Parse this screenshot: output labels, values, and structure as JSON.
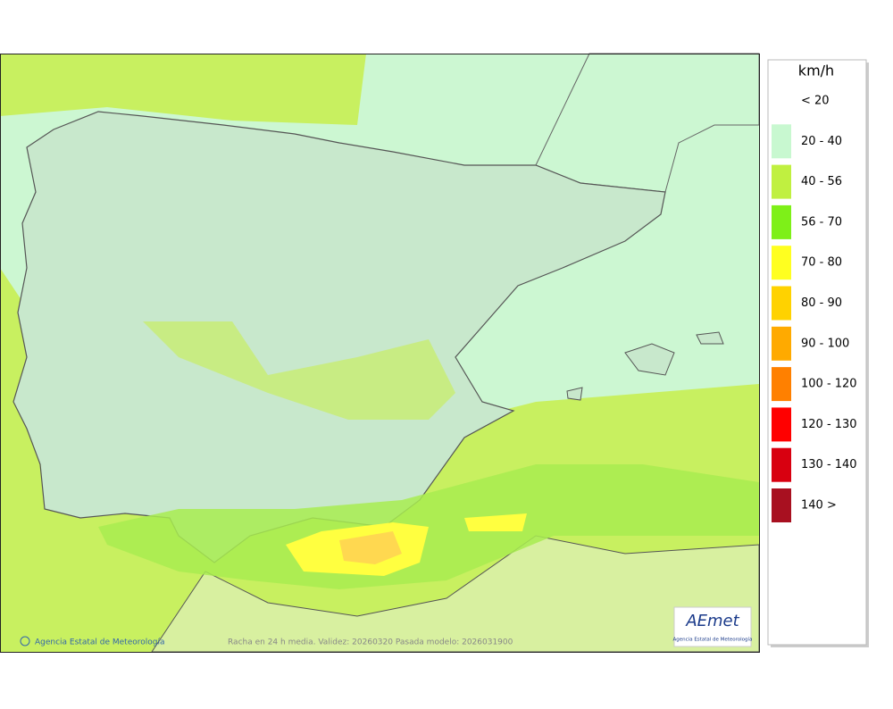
{
  "legend": {
    "title": "km/h",
    "items": [
      {
        "label": "< 20",
        "color": "#ffffff"
      },
      {
        "label": "20 - 40",
        "color": "#c8f8d0"
      },
      {
        "label": "40 - 56",
        "color": "#c0f040"
      },
      {
        "label": "56 - 70",
        "color": "#7ef018"
      },
      {
        "label": "70 - 80",
        "color": "#ffff20"
      },
      {
        "label": "80 - 90",
        "color": "#ffd200"
      },
      {
        "label": "90 - 100",
        "color": "#ffaa00"
      },
      {
        "label": "100 - 120",
        "color": "#ff8000"
      },
      {
        "label": "120 - 130",
        "color": "#ff0000"
      },
      {
        "label": "130 - 140",
        "color": "#d80010"
      },
      {
        "label": "140 >",
        "color": "#a81020"
      }
    ]
  },
  "footer": {
    "credit": "Agencia Estatal de Meteorología",
    "caption": "Racha en 24 h media. Validez: 20260320 Pasada modelo: 2026031900"
  },
  "logo": {
    "name": "AEmet",
    "subtitle": "Agencia Estatal de Meteorología"
  }
}
